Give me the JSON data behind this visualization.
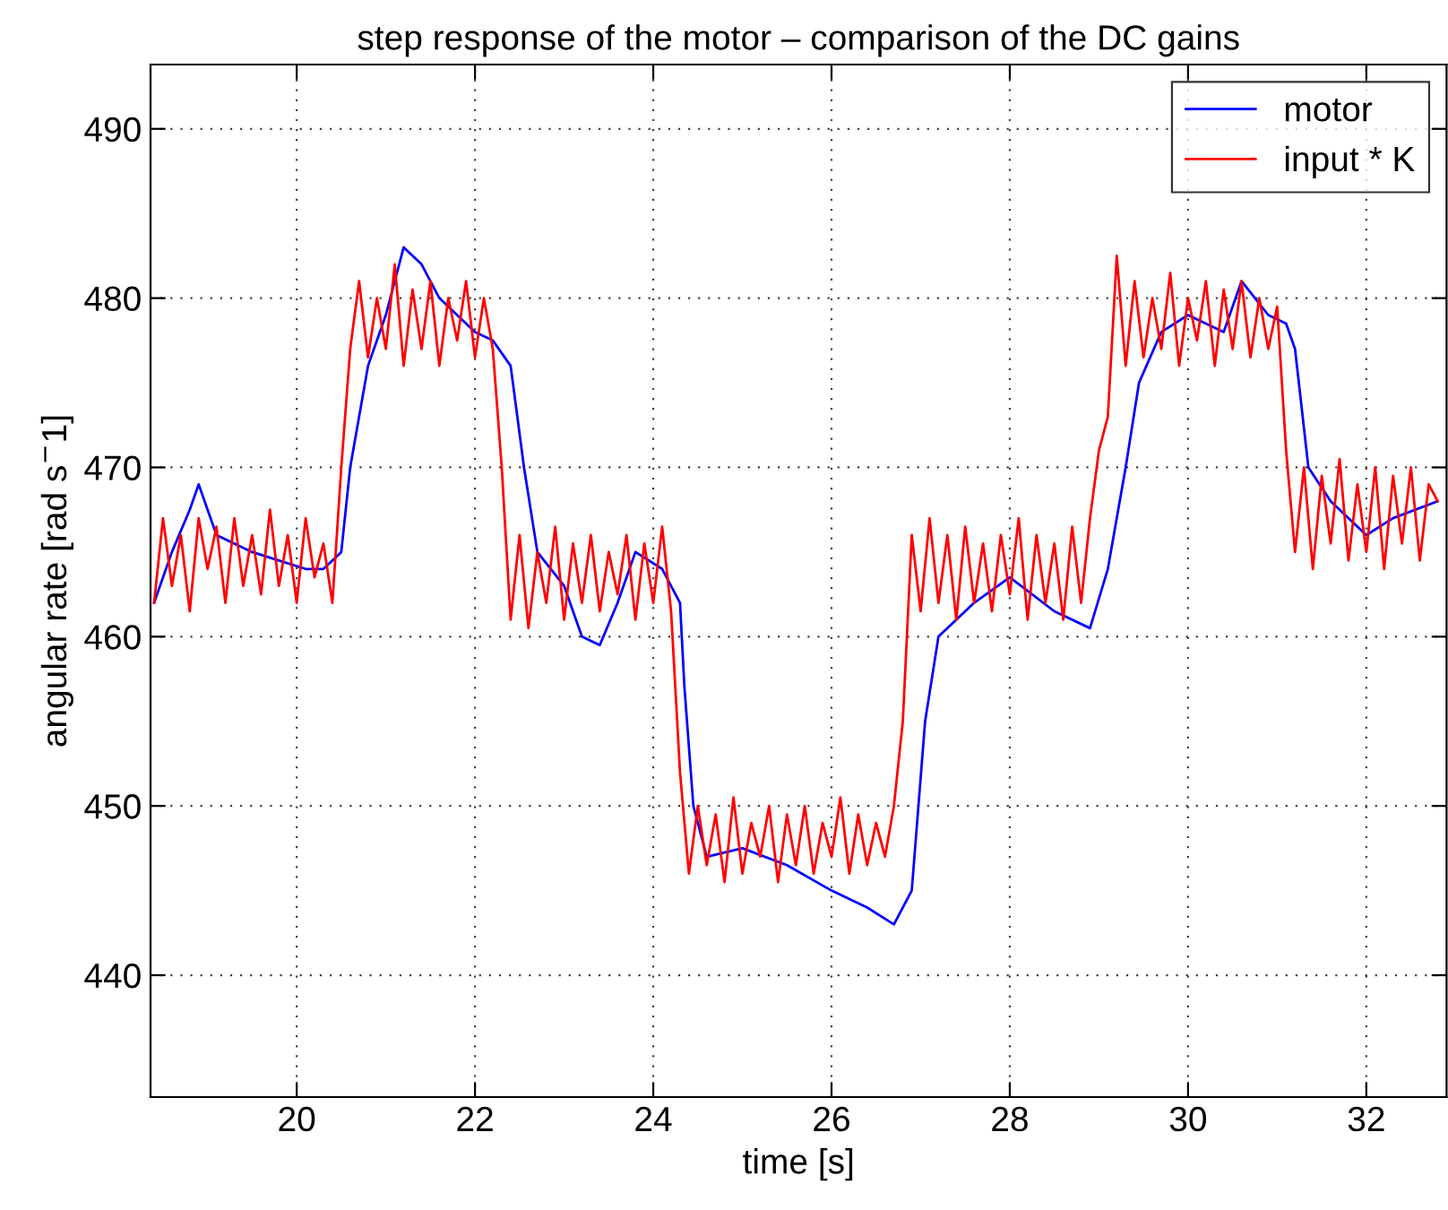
{
  "chart_data": {
    "type": "line",
    "title": "step response of the motor – comparison of the DC gains",
    "xlabel": "time [s]",
    "ylabel": "angular rate [rad s$^{−}$1]",
    "xlim": [
      18.36,
      32.9
    ],
    "ylim": [
      432.8,
      493.8
    ],
    "xticks": [
      20,
      22,
      24,
      26,
      28,
      30,
      32
    ],
    "yticks": [
      440,
      450,
      460,
      470,
      480,
      490
    ],
    "grid": true,
    "legend": "top right",
    "line_style": "solid",
    "marker": "none",
    "series": [
      {
        "name": "motor",
        "color": "#0000ff",
        "x": [
          18.4,
          18.6,
          18.8,
          18.9,
          19.1,
          19.3,
          19.5,
          19.8,
          20.1,
          20.3,
          20.5,
          20.6,
          20.8,
          21.0,
          21.2,
          21.4,
          21.6,
          21.8,
          22.0,
          22.2,
          22.4,
          22.55,
          22.7,
          23.0,
          23.2,
          23.4,
          23.6,
          23.8,
          24.1,
          24.3,
          24.35,
          24.45,
          24.6,
          25.0,
          25.5,
          26.0,
          26.4,
          26.7,
          26.9,
          27.05,
          27.2,
          27.6,
          28.0,
          28.5,
          28.9,
          29.1,
          29.3,
          29.45,
          29.7,
          30.0,
          30.4,
          30.6,
          30.9,
          31.1,
          31.2,
          31.35,
          31.6,
          32.0,
          32.3,
          32.8
        ],
        "values": [
          462,
          465,
          467.5,
          469,
          466,
          465.5,
          465,
          464.5,
          464,
          464,
          465,
          470,
          476,
          479,
          483,
          482,
          480,
          479,
          478,
          477.5,
          476,
          470,
          465,
          463,
          460,
          459.5,
          462,
          465,
          464,
          462,
          457,
          450,
          447,
          447.5,
          446.5,
          445,
          444,
          443,
          445,
          455,
          460,
          462,
          463.5,
          461.5,
          460.5,
          464,
          470,
          475,
          478,
          479,
          478,
          481,
          479,
          478.5,
          477,
          470,
          468,
          466,
          467,
          468
        ]
      },
      {
        "name": "input * K",
        "color": "#ff0000",
        "x": [
          18.4,
          18.5,
          18.6,
          18.7,
          18.8,
          18.9,
          19.0,
          19.1,
          19.2,
          19.3,
          19.4,
          19.5,
          19.6,
          19.7,
          19.8,
          19.9,
          20.0,
          20.1,
          20.2,
          20.3,
          20.4,
          20.5,
          20.6,
          20.7,
          20.8,
          20.9,
          21.0,
          21.1,
          21.2,
          21.3,
          21.4,
          21.5,
          21.6,
          21.7,
          21.8,
          21.9,
          22.0,
          22.1,
          22.2,
          22.3,
          22.4,
          22.5,
          22.6,
          22.7,
          22.8,
          22.9,
          23.0,
          23.1,
          23.2,
          23.3,
          23.4,
          23.5,
          23.6,
          23.7,
          23.8,
          23.9,
          24.0,
          24.1,
          24.2,
          24.3,
          24.4,
          24.5,
          24.6,
          24.7,
          24.8,
          24.9,
          25.0,
          25.1,
          25.2,
          25.3,
          25.4,
          25.5,
          25.6,
          25.7,
          25.8,
          25.9,
          26.0,
          26.1,
          26.2,
          26.3,
          26.4,
          26.5,
          26.6,
          26.7,
          26.8,
          26.9,
          27.0,
          27.1,
          27.2,
          27.3,
          27.4,
          27.5,
          27.6,
          27.7,
          27.8,
          27.9,
          28.0,
          28.1,
          28.2,
          28.3,
          28.4,
          28.5,
          28.6,
          28.7,
          28.8,
          28.9,
          29.0,
          29.1,
          29.2,
          29.3,
          29.4,
          29.5,
          29.6,
          29.7,
          29.8,
          29.9,
          30.0,
          30.1,
          30.2,
          30.3,
          30.4,
          30.5,
          30.6,
          30.7,
          30.8,
          30.9,
          31.0,
          31.1,
          31.2,
          31.3,
          31.4,
          31.5,
          31.6,
          31.7,
          31.8,
          31.9,
          32.0,
          32.1,
          32.2,
          32.3,
          32.4,
          32.5,
          32.6,
          32.7,
          32.8
        ],
        "values": [
          462,
          467,
          463,
          466,
          461.5,
          467,
          464,
          466.5,
          462,
          467,
          463,
          466,
          462.5,
          467.5,
          463,
          466,
          462,
          467,
          463.5,
          465.5,
          462,
          470,
          477,
          481,
          476.5,
          480,
          477,
          482,
          476,
          480.5,
          477,
          481,
          476,
          480,
          477.5,
          481,
          476.5,
          480,
          477,
          470,
          461,
          466,
          460.5,
          465,
          462,
          466.5,
          461,
          465.5,
          462,
          466,
          461.5,
          465,
          462.5,
          466,
          461,
          465.5,
          462,
          466.5,
          461.5,
          452,
          446,
          450,
          446.5,
          449.5,
          445.5,
          450.5,
          446,
          449,
          447,
          450,
          445.5,
          449.5,
          446.5,
          450,
          446,
          449,
          447,
          450.5,
          446,
          449.5,
          446.5,
          449,
          447,
          450,
          455,
          466,
          461.5,
          467,
          462,
          466,
          461,
          466.5,
          462,
          465.5,
          461.5,
          466,
          462.5,
          467,
          461,
          466,
          462,
          465.5,
          461,
          466.5,
          462,
          467,
          471,
          473,
          482.5,
          476,
          481,
          476.5,
          480,
          477,
          481.5,
          476,
          480,
          477.5,
          481,
          476,
          480.5,
          477,
          481,
          476.5,
          480,
          477,
          479.5,
          471,
          465,
          470,
          464,
          469.5,
          465.5,
          470.5,
          464.5,
          469,
          465,
          470,
          464,
          469.5,
          465.5,
          470,
          464.5,
          469,
          468
        ]
      }
    ]
  }
}
